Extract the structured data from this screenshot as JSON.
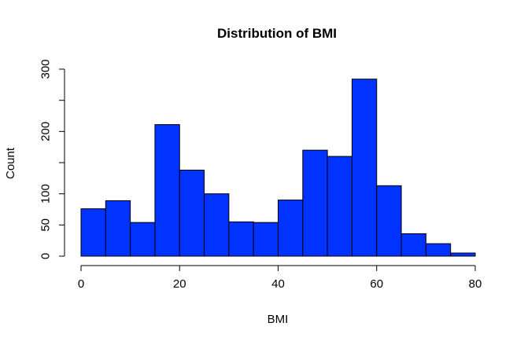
{
  "chart_data": {
    "type": "bar",
    "title": "Distribution of BMI",
    "xlabel": "BMI",
    "ylabel": "Count",
    "bin_edges": [
      0,
      5,
      10,
      15,
      20,
      25,
      30,
      35,
      40,
      45,
      50,
      55,
      60,
      65,
      70,
      75,
      80
    ],
    "values": [
      76,
      89,
      54,
      211,
      138,
      100,
      55,
      54,
      90,
      170,
      160,
      284,
      113,
      36,
      20,
      5
    ],
    "xlim": [
      0,
      80
    ],
    "ylim": [
      0,
      300
    ],
    "x_ticks": [
      "0",
      "20",
      "40",
      "60",
      "80"
    ],
    "y_ticks": [
      "0",
      "50",
      "100",
      "200",
      "300"
    ],
    "y_minor_ticks": [
      150,
      250
    ],
    "bar_color": "#0033FF",
    "grid": false,
    "legend": "none"
  }
}
